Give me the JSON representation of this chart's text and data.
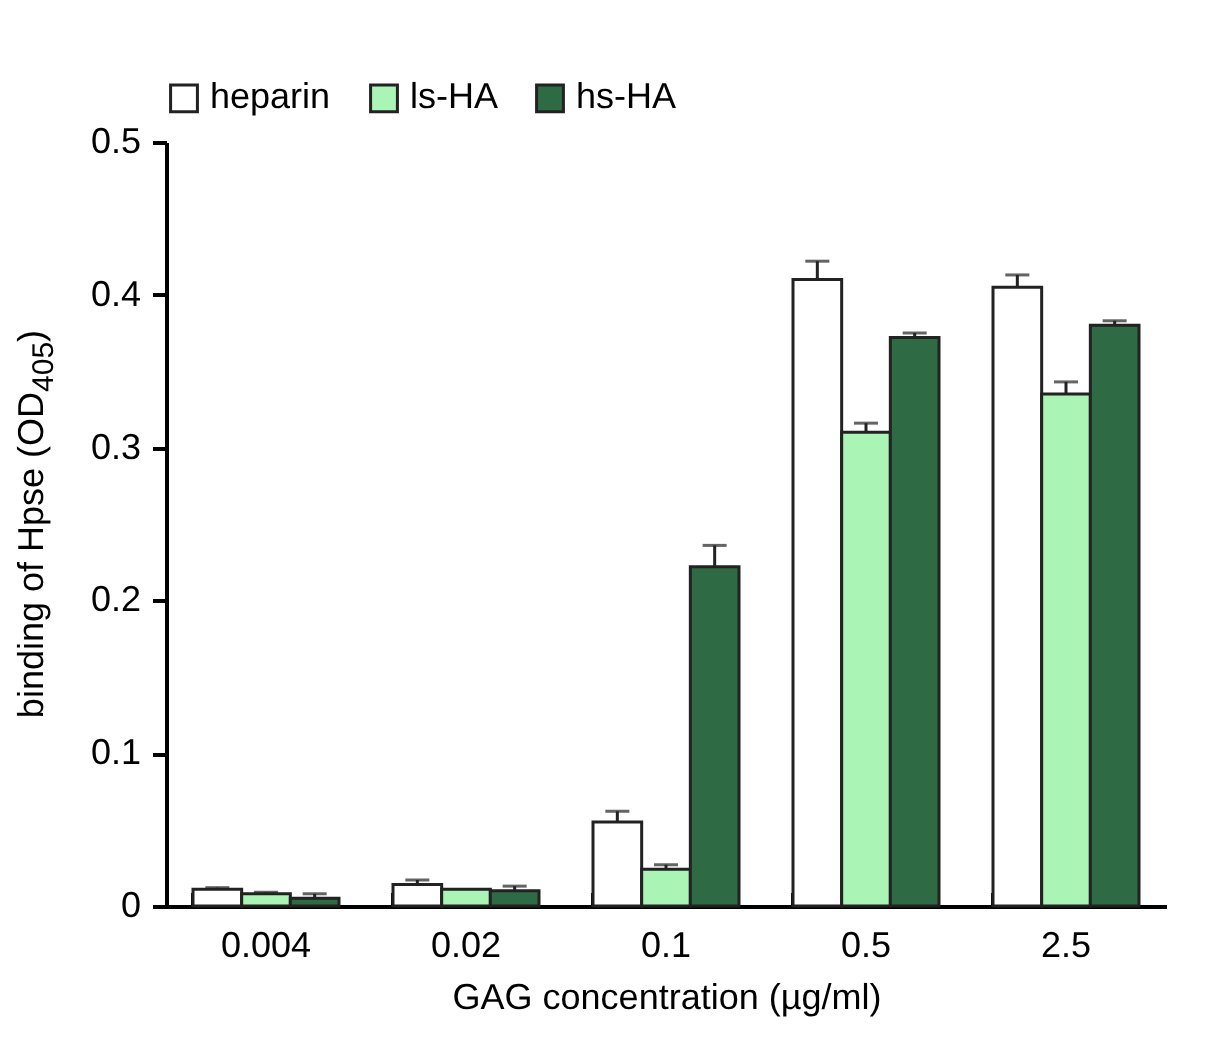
{
  "chart_data": {
    "type": "bar",
    "xlabel": "GAG concentration (µg/ml)",
    "ylabel": "binding of Hpse (OD$_{405}$)",
    "categories": [
      "0.004",
      "0.02",
      "0.1",
      "0.5",
      "2.5"
    ],
    "series": [
      {
        "name": "heparin",
        "color": "#ffffff",
        "values": [
          0.011,
          0.014,
          0.055,
          0.41,
          0.405
        ],
        "errors": [
          [
            0.011,
            0.012
          ],
          [
            0.014,
            0.017
          ],
          [
            0.055,
            0.062
          ],
          [
            0.41,
            0.422
          ],
          [
            0.405,
            0.413
          ]
        ]
      },
      {
        "name": "ls-HA",
        "color": "#aaf5b5",
        "values": [
          0.008,
          0.011,
          0.024,
          0.31,
          0.335
        ],
        "errors": [
          [
            0.008,
            0.009
          ],
          null,
          [
            0.024,
            0.027
          ],
          [
            0.31,
            0.316
          ],
          [
            0.335,
            0.343
          ]
        ]
      },
      {
        "name": "hs-HA",
        "color": "#2e6b44",
        "values": [
          0.005,
          0.01,
          0.222,
          0.372,
          0.38
        ],
        "errors": [
          [
            0.005,
            0.008
          ],
          [
            0.01,
            0.013
          ],
          [
            0.222,
            0.236
          ],
          [
            0.372,
            0.375
          ],
          [
            0.38,
            0.383
          ]
        ]
      }
    ],
    "ylim": [
      0,
      0.5
    ],
    "yticks": [
      0,
      0.1,
      0.2,
      0.3,
      0.4,
      0.5
    ],
    "grid": false,
    "legend": "top"
  }
}
